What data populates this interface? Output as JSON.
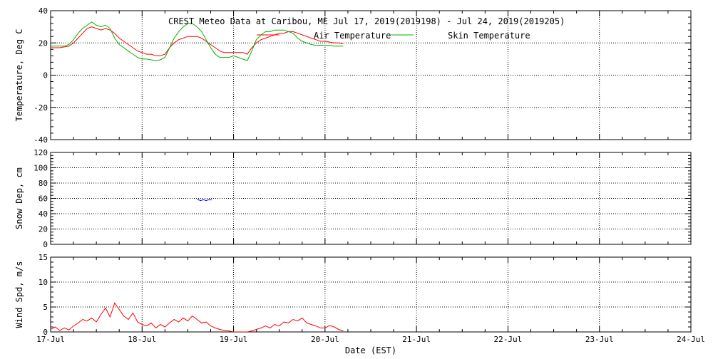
{
  "chart_data": [
    {
      "type": "line",
      "title": "CREST Meteo Data at Caribou, ME   Jul 17, 2019(2019198) - Jul 24, 2019(2019205)",
      "xlabel": "",
      "ylabel": "Temperature, Deg C",
      "xlim": [
        0,
        7
      ],
      "ylim": [
        -40,
        40
      ],
      "x_tick_labels": [
        "17-Jul",
        "18-Jul",
        "19-Jul",
        "20-Jul",
        "21-Jul",
        "22-Jul",
        "23-Jul",
        "24-Jul"
      ],
      "y_ticks": [
        -40,
        -20,
        0,
        20,
        40
      ],
      "grid": true,
      "legend": "top-center",
      "series": [
        {
          "name": "Air Temperature",
          "color": "#ff0000",
          "x": [
            0.0,
            0.05,
            0.1,
            0.15,
            0.2,
            0.25,
            0.3,
            0.35,
            0.4,
            0.45,
            0.5,
            0.55,
            0.6,
            0.65,
            0.7,
            0.75,
            0.8,
            0.85,
            0.9,
            0.95,
            1.0,
            1.05,
            1.1,
            1.15,
            1.2,
            1.25,
            1.3,
            1.35,
            1.4,
            1.45,
            1.5,
            1.55,
            1.6,
            1.65,
            1.7,
            1.75,
            1.8,
            1.85,
            1.9,
            1.95,
            2.0,
            2.05,
            2.1,
            2.15,
            2.2,
            2.25,
            2.3,
            2.35,
            2.4,
            2.45,
            2.5,
            2.55,
            2.6,
            2.65,
            2.7,
            2.75,
            2.8,
            2.85,
            2.9,
            2.95,
            3.0,
            3.05,
            3.1,
            3.15,
            3.2
          ],
          "values": [
            17,
            17,
            17,
            17.5,
            18,
            20,
            23,
            26,
            29,
            30,
            29,
            28,
            29,
            28,
            26,
            23,
            21,
            19,
            17,
            15,
            14,
            13,
            13,
            12,
            12,
            13,
            17,
            20,
            22,
            23,
            24,
            24,
            24,
            23,
            21,
            19,
            17,
            15,
            14,
            14,
            14,
            14,
            14,
            13,
            17,
            20,
            22,
            23,
            24,
            25,
            26,
            26,
            27,
            27,
            26,
            25,
            24,
            23,
            22,
            21,
            21,
            20.5,
            20,
            20,
            19.5
          ]
        },
        {
          "name": "Skin Temperature",
          "color": "#00b400",
          "x": [
            0.0,
            0.05,
            0.1,
            0.15,
            0.2,
            0.25,
            0.3,
            0.35,
            0.4,
            0.45,
            0.5,
            0.55,
            0.6,
            0.65,
            0.7,
            0.75,
            0.8,
            0.85,
            0.9,
            0.95,
            1.0,
            1.05,
            1.1,
            1.15,
            1.2,
            1.25,
            1.3,
            1.35,
            1.4,
            1.45,
            1.5,
            1.55,
            1.6,
            1.65,
            1.7,
            1.75,
            1.8,
            1.85,
            1.9,
            1.95,
            2.0,
            2.05,
            2.1,
            2.15,
            2.2,
            2.25,
            2.3,
            2.35,
            2.4,
            2.45,
            2.5,
            2.55,
            2.6,
            2.65,
            2.7,
            2.75,
            2.8,
            2.85,
            2.9,
            2.95,
            3.0,
            3.05,
            3.1,
            3.15,
            3.2
          ],
          "values": [
            18,
            18,
            18,
            18,
            19,
            22,
            26,
            29,
            31,
            33,
            31,
            30,
            31,
            29,
            23,
            19,
            17,
            15,
            13,
            11,
            10,
            10,
            9.5,
            9,
            9.5,
            11,
            17,
            23,
            27,
            30,
            32,
            32,
            30,
            27,
            22,
            17,
            13,
            11,
            11,
            11,
            12,
            11,
            10,
            9,
            15,
            22,
            25,
            27,
            27,
            28,
            28,
            28,
            27,
            26,
            23,
            21,
            20,
            19,
            18.5,
            18.5,
            18.5,
            18.5,
            18,
            18,
            18
          ]
        }
      ]
    },
    {
      "type": "line",
      "title": "",
      "xlabel": "",
      "ylabel": "Snow Dep, cm",
      "xlim": [
        0,
        7
      ],
      "ylim": [
        0,
        120
      ],
      "x_tick_labels": [
        "17-Jul",
        "18-Jul",
        "19-Jul",
        "20-Jul",
        "21-Jul",
        "22-Jul",
        "23-Jul",
        "24-Jul"
      ],
      "y_ticks": [
        0,
        20,
        40,
        60,
        80,
        100,
        120
      ],
      "grid": true,
      "legend": "none",
      "series": [
        {
          "name": "",
          "color": "#0000ff",
          "x": [
            1.6,
            1.62,
            1.64,
            1.66,
            1.68,
            1.7,
            1.72,
            1.74,
            1.76
          ],
          "values": [
            58,
            58,
            57,
            58,
            58,
            57,
            58,
            58,
            58
          ]
        }
      ]
    },
    {
      "type": "line",
      "title": "",
      "xlabel": "Date (EST)",
      "ylabel": "Wind Spd, m/s",
      "xlim": [
        0,
        7
      ],
      "ylim": [
        0,
        15
      ],
      "x_tick_labels": [
        "17-Jul",
        "18-Jul",
        "19-Jul",
        "20-Jul",
        "21-Jul",
        "22-Jul",
        "23-Jul",
        "24-Jul"
      ],
      "y_ticks": [
        0,
        5,
        10,
        15
      ],
      "grid": true,
      "legend": "none",
      "series": [
        {
          "name": "",
          "color": "#ff0000",
          "x": [
            0.0,
            0.05,
            0.1,
            0.15,
            0.2,
            0.25,
            0.3,
            0.35,
            0.4,
            0.45,
            0.5,
            0.55,
            0.6,
            0.65,
            0.7,
            0.75,
            0.8,
            0.85,
            0.9,
            0.95,
            1.0,
            1.05,
            1.1,
            1.15,
            1.2,
            1.25,
            1.3,
            1.35,
            1.4,
            1.45,
            1.5,
            1.55,
            1.6,
            1.65,
            1.7,
            1.75,
            1.8,
            1.85,
            1.9,
            1.95,
            2.0,
            2.05,
            2.1,
            2.15,
            2.2,
            2.25,
            2.3,
            2.35,
            2.4,
            2.45,
            2.5,
            2.55,
            2.6,
            2.65,
            2.7,
            2.75,
            2.8,
            2.85,
            2.9,
            2.95,
            3.0,
            3.05,
            3.1,
            3.15,
            3.2
          ],
          "values": [
            0.5,
            1.0,
            0.3,
            0.8,
            0.4,
            1.2,
            1.8,
            2.5,
            2.2,
            2.8,
            2.0,
            3.5,
            4.8,
            3.0,
            5.8,
            4.5,
            3.2,
            2.5,
            3.8,
            2.0,
            1.5,
            1.2,
            1.8,
            0.8,
            1.5,
            1.0,
            1.8,
            2.5,
            2.0,
            2.8,
            2.2,
            3.2,
            2.5,
            1.8,
            2.0,
            1.2,
            0.8,
            0.5,
            0.3,
            0.2,
            0.0,
            0.0,
            0.0,
            0.0,
            0.2,
            0.5,
            0.8,
            1.2,
            0.8,
            1.5,
            1.2,
            2.0,
            1.8,
            2.5,
            2.2,
            2.8,
            1.8,
            1.5,
            1.2,
            0.8,
            0.8,
            1.3,
            1.0,
            0.5,
            0.2
          ]
        }
      ]
    }
  ]
}
